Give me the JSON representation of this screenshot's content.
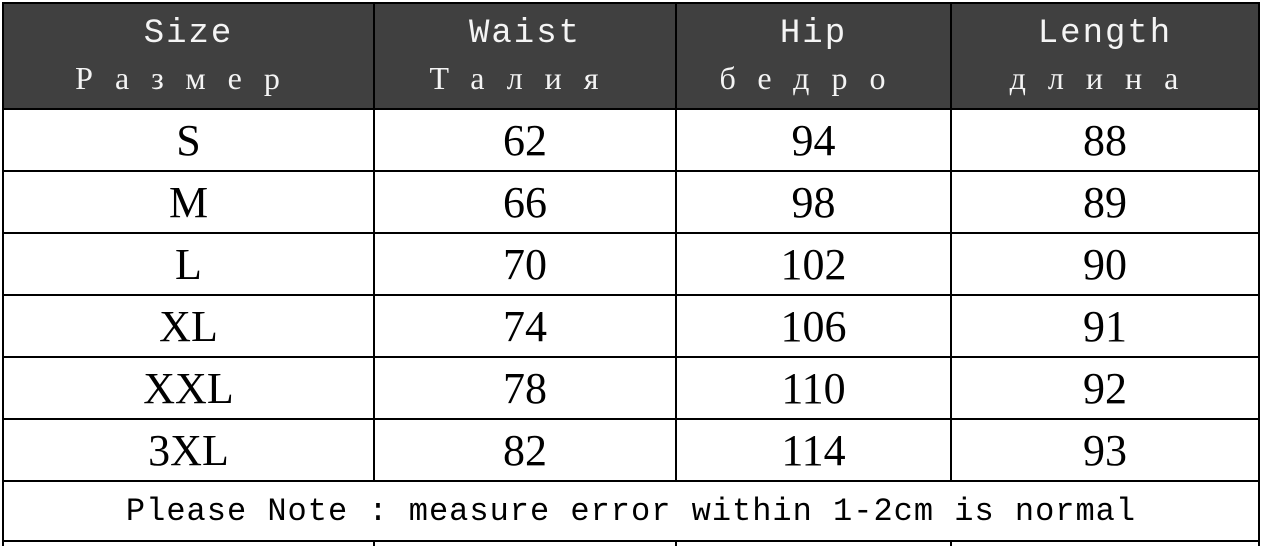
{
  "headers": [
    {
      "en": "Size",
      "ru": "Размер"
    },
    {
      "en": "Waist",
      "ru": "Талия"
    },
    {
      "en": "Hip",
      "ru": "бедро"
    },
    {
      "en": "Length",
      "ru": "длина"
    }
  ],
  "rows": [
    [
      "S",
      "62",
      "94",
      "88"
    ],
    [
      "M",
      "66",
      "98",
      "89"
    ],
    [
      "L",
      "70",
      "102",
      "90"
    ],
    [
      "XL",
      "74",
      "106",
      "91"
    ],
    [
      "XXL",
      "78",
      "110",
      "92"
    ],
    [
      "3XL",
      "82",
      "114",
      "93"
    ]
  ],
  "note": "Please Note : measure error within 1-2cm is normal",
  "colors": {
    "header_bg": "#404040",
    "header_text": "#f4f4f4",
    "border": "#000000"
  }
}
